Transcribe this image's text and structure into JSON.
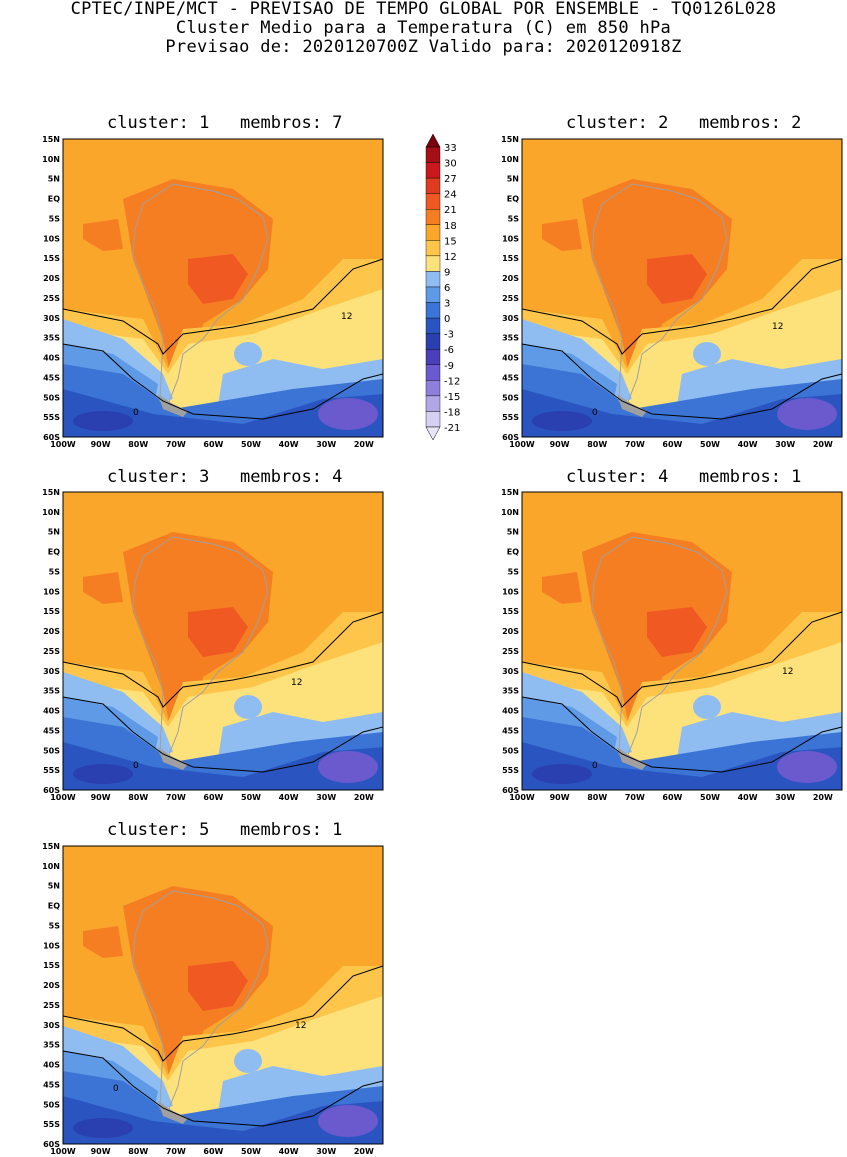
{
  "header": {
    "line1": "CPTEC/INPE/MCT - PREVISAO DE TEMPO GLOBAL POR ENSEMBLE - TQ0126L028",
    "line2": "Cluster Medio para a Temperatura (C) em 850 hPa",
    "line3": "Previsao de: 2020120700Z    Valido para: 2020120918Z"
  },
  "panels": [
    {
      "title": "cluster: 1   membros: 7"
    },
    {
      "title": "cluster: 2   membros: 2"
    },
    {
      "title": "cluster: 3   membros: 4"
    },
    {
      "title": "cluster: 4   membros: 1"
    },
    {
      "title": "cluster: 5   membros: 1"
    }
  ],
  "axes": {
    "lat_labels": [
      "15N",
      "10N",
      "5N",
      "EQ",
      "5S",
      "10S",
      "15S",
      "20S",
      "25S",
      "30S",
      "35S",
      "40S",
      "45S",
      "50S",
      "55S",
      "60S"
    ],
    "lon_labels": [
      "100W",
      "90W",
      "80W",
      "70W",
      "60W",
      "50W",
      "40W",
      "30W",
      "20W"
    ]
  },
  "contour_labels": {
    "warm": "12",
    "cold": "0"
  },
  "colorbar": {
    "labels": [
      "33",
      "30",
      "27",
      "24",
      "21",
      "18",
      "15",
      "12",
      "9",
      "6",
      "3",
      "0",
      "-3",
      "-6",
      "-9",
      "-12",
      "-15",
      "-18",
      "-21"
    ],
    "colors": [
      "#a50f15",
      "#cb181d",
      "#e03b1f",
      "#f05a22",
      "#f57e22",
      "#f9a62a",
      "#fdc64a",
      "#fde27c",
      "#8fbdf2",
      "#5e9ae6",
      "#3b74d4",
      "#2a55c1",
      "#2a3fb0",
      "#4a3fb8",
      "#6a5acd",
      "#8f7fdc",
      "#b1a7e6",
      "#d6d0f2"
    ]
  },
  "chart_data": {
    "type": "heatmap",
    "variable": "Temperatura (C) em 850 hPa",
    "lat_range": [
      "60S",
      "15N"
    ],
    "lon_range": [
      "100W",
      "15W"
    ],
    "contour_levels": [
      33,
      30,
      27,
      24,
      21,
      18,
      15,
      12,
      9,
      6,
      3,
      0,
      -3,
      -6,
      -9,
      -12,
      -15,
      -18,
      -21
    ],
    "line_contours": [
      12,
      0
    ]
  }
}
